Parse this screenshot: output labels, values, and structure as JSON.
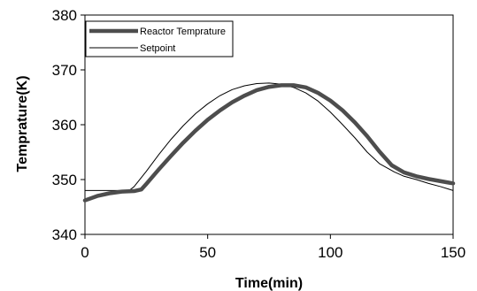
{
  "chart_data": {
    "type": "line",
    "title": "",
    "xlabel": "Time(min)",
    "ylabel": "Temprature(K)",
    "xlim": [
      0,
      150
    ],
    "ylim": [
      340,
      380
    ],
    "xticks": [
      0,
      50,
      100,
      150
    ],
    "yticks": [
      340,
      350,
      360,
      370,
      380
    ],
    "grid": false,
    "legend": "top-left",
    "series": [
      {
        "name": "Reactor Temprature",
        "color": "#4d4d4d",
        "style": "thick",
        "x": [
          0,
          5,
          10,
          15,
          20,
          23,
          25,
          30,
          35,
          40,
          45,
          50,
          55,
          60,
          65,
          70,
          75,
          80,
          85,
          90,
          95,
          100,
          105,
          110,
          115,
          120,
          125,
          130,
          135,
          140,
          145,
          150
        ],
        "y": [
          346.2,
          347.0,
          347.5,
          347.8,
          347.9,
          348.2,
          349.2,
          351.8,
          354.3,
          356.7,
          358.9,
          360.9,
          362.6,
          364.1,
          365.3,
          366.3,
          366.9,
          367.2,
          367.2,
          366.8,
          365.8,
          364.4,
          362.6,
          360.4,
          357.9,
          355.1,
          352.6,
          351.3,
          350.6,
          350.1,
          349.7,
          349.3
        ]
      },
      {
        "name": "Setpoint",
        "color": "#000000",
        "style": "thin",
        "x": [
          0,
          18,
          20,
          25,
          30,
          35,
          40,
          45,
          50,
          55,
          60,
          65,
          70,
          75,
          80,
          85,
          90,
          95,
          100,
          105,
          110,
          115,
          120,
          126,
          130,
          135,
          140,
          145,
          150
        ],
        "y": [
          348.0,
          348.0,
          348.7,
          351.5,
          354.5,
          357.3,
          359.8,
          362.0,
          363.8,
          365.3,
          366.4,
          367.1,
          367.5,
          367.6,
          367.4,
          366.8,
          365.8,
          364.3,
          362.3,
          360.0,
          357.6,
          355.0,
          352.9,
          351.4,
          350.6,
          350.0,
          349.3,
          348.7,
          348.0
        ]
      }
    ]
  }
}
